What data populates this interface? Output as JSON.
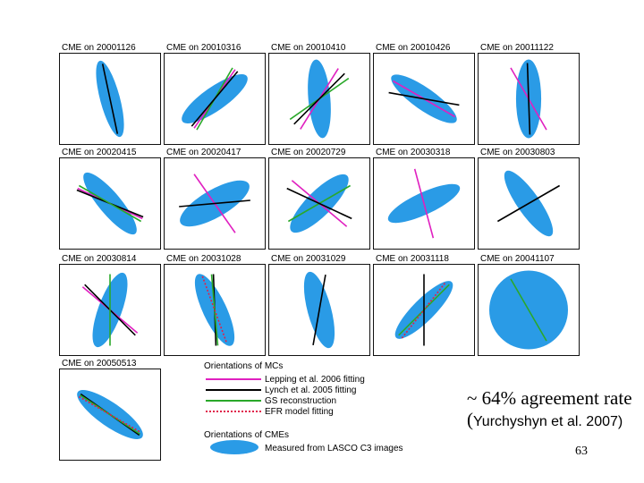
{
  "panels": [
    {
      "title": "CME on 20001126",
      "ellipse_angle_deg": 75,
      "ellipse_aspect": 0.25,
      "lines": [
        {
          "method": "lynch",
          "angle_deg": 78
        }
      ]
    },
    {
      "title": "CME on 20010316",
      "ellipse_angle_deg": -35,
      "ellipse_aspect": 0.3,
      "lines": [
        {
          "method": "lepping",
          "angle_deg": -55
        },
        {
          "method": "gs",
          "angle_deg": -60
        },
        {
          "method": "lynch",
          "angle_deg": -50
        }
      ]
    },
    {
      "title": "CME on 20010410",
      "ellipse_angle_deg": 85,
      "ellipse_aspect": 0.28,
      "lines": [
        {
          "method": "lepping",
          "angle_deg": -58
        },
        {
          "method": "gs",
          "angle_deg": -35
        },
        {
          "method": "lynch",
          "angle_deg": -45
        }
      ]
    },
    {
      "title": "CME on 20010426",
      "ellipse_angle_deg": 35,
      "ellipse_aspect": 0.28,
      "lines": [
        {
          "method": "lepping",
          "angle_deg": 30
        },
        {
          "method": "lynch",
          "angle_deg": 10
        }
      ]
    },
    {
      "title": "CME on 20011122",
      "ellipse_angle_deg": 90,
      "ellipse_aspect": 0.32,
      "lines": [
        {
          "method": "lepping",
          "angle_deg": 60
        },
        {
          "method": "lynch",
          "angle_deg": 88
        }
      ]
    },
    {
      "title": "CME on 20020415",
      "ellipse_angle_deg": 50,
      "ellipse_aspect": 0.28,
      "lines": [
        {
          "method": "lepping",
          "angle_deg": 25
        },
        {
          "method": "lynch",
          "angle_deg": 22
        },
        {
          "method": "gs",
          "angle_deg": 30
        }
      ]
    },
    {
      "title": "CME on 20020417",
      "ellipse_angle_deg": -30,
      "ellipse_aspect": 0.35,
      "lines": [
        {
          "method": "lepping",
          "angle_deg": 55
        },
        {
          "method": "lynch",
          "angle_deg": -5
        }
      ]
    },
    {
      "title": "CME on 20020729",
      "ellipse_angle_deg": -45,
      "ellipse_aspect": 0.32,
      "lines": [
        {
          "method": "lepping",
          "angle_deg": 40
        },
        {
          "method": "gs",
          "angle_deg": -30
        },
        {
          "method": "lynch",
          "angle_deg": 25
        }
      ]
    },
    {
      "title": "CME on 20030318",
      "ellipse_angle_deg": -25,
      "ellipse_aspect": 0.28,
      "lines": [
        {
          "method": "lepping",
          "angle_deg": 75
        }
      ]
    },
    {
      "title": "CME on 20030803",
      "ellipse_angle_deg": 55,
      "ellipse_aspect": 0.28,
      "lines": [
        {
          "method": "lynch",
          "angle_deg": -30
        }
      ]
    },
    {
      "title": "CME on 20030814",
      "ellipse_angle_deg": -70,
      "ellipse_aspect": 0.3,
      "lines": [
        {
          "method": "lepping",
          "angle_deg": 40
        },
        {
          "method": "lynch",
          "angle_deg": 45
        },
        {
          "method": "gs",
          "angle_deg": 90
        }
      ]
    },
    {
      "title": "CME on 20031028",
      "ellipse_angle_deg": 65,
      "ellipse_aspect": 0.3,
      "lines": [
        {
          "method": "lynch",
          "angle_deg": 88
        },
        {
          "method": "gs",
          "angle_deg": 85
        },
        {
          "method": "efr",
          "angle_deg": 70
        }
      ]
    },
    {
      "title": "CME on 20031029",
      "ellipse_angle_deg": 75,
      "ellipse_aspect": 0.3,
      "lines": [
        {
          "method": "lynch",
          "angle_deg": -80
        }
      ]
    },
    {
      "title": "CME on 20031118",
      "ellipse_angle_deg": -45,
      "ellipse_aspect": 0.28,
      "lines": [
        {
          "method": "gs",
          "angle_deg": -45
        },
        {
          "method": "efr",
          "angle_deg": -52
        },
        {
          "method": "lynch",
          "angle_deg": 90
        }
      ]
    },
    {
      "title": "CME on 20041107",
      "ellipse_angle_deg": 0,
      "ellipse_aspect": 1,
      "lines": [
        {
          "method": "gs",
          "angle_deg": 60
        }
      ]
    },
    {
      "title": "CME on 20050513",
      "ellipse_angle_deg": 35,
      "ellipse_aspect": 0.3,
      "lines": [
        {
          "method": "lynch",
          "angle_deg": 35
        },
        {
          "method": "gs",
          "angle_deg": 33
        },
        {
          "method": "efr",
          "angle_deg": 30
        }
      ]
    }
  ],
  "legend": {
    "mc_heading": "Orientations of MCs",
    "items": [
      {
        "method": "lepping",
        "label": "Lepping et al. 2006 fitting"
      },
      {
        "method": "lynch",
        "label": "Lynch et al. 2005 fitting"
      },
      {
        "method": "gs",
        "label": "GS reconstruction"
      },
      {
        "method": "efr",
        "label": "EFR model fitting"
      }
    ],
    "cme_heading": "Orientations of CMEs",
    "cme_item": "Measured from LASCO C3 images"
  },
  "methods": {
    "lepping": {
      "color": "#e020c0",
      "dashed": false
    },
    "lynch": {
      "color": "#000000",
      "dashed": false
    },
    "gs": {
      "color": "#2aa82a",
      "dashed": false
    },
    "efr": {
      "color": "#e0204a",
      "dashed": true
    }
  },
  "colors": {
    "ellipse_fill": "#2a9be6",
    "panel_border": "#111111"
  },
  "caption": {
    "main": "~ 64% agreement rate (",
    "citation": "Yurchyshyn et al. 2007)"
  },
  "page_number": "63"
}
